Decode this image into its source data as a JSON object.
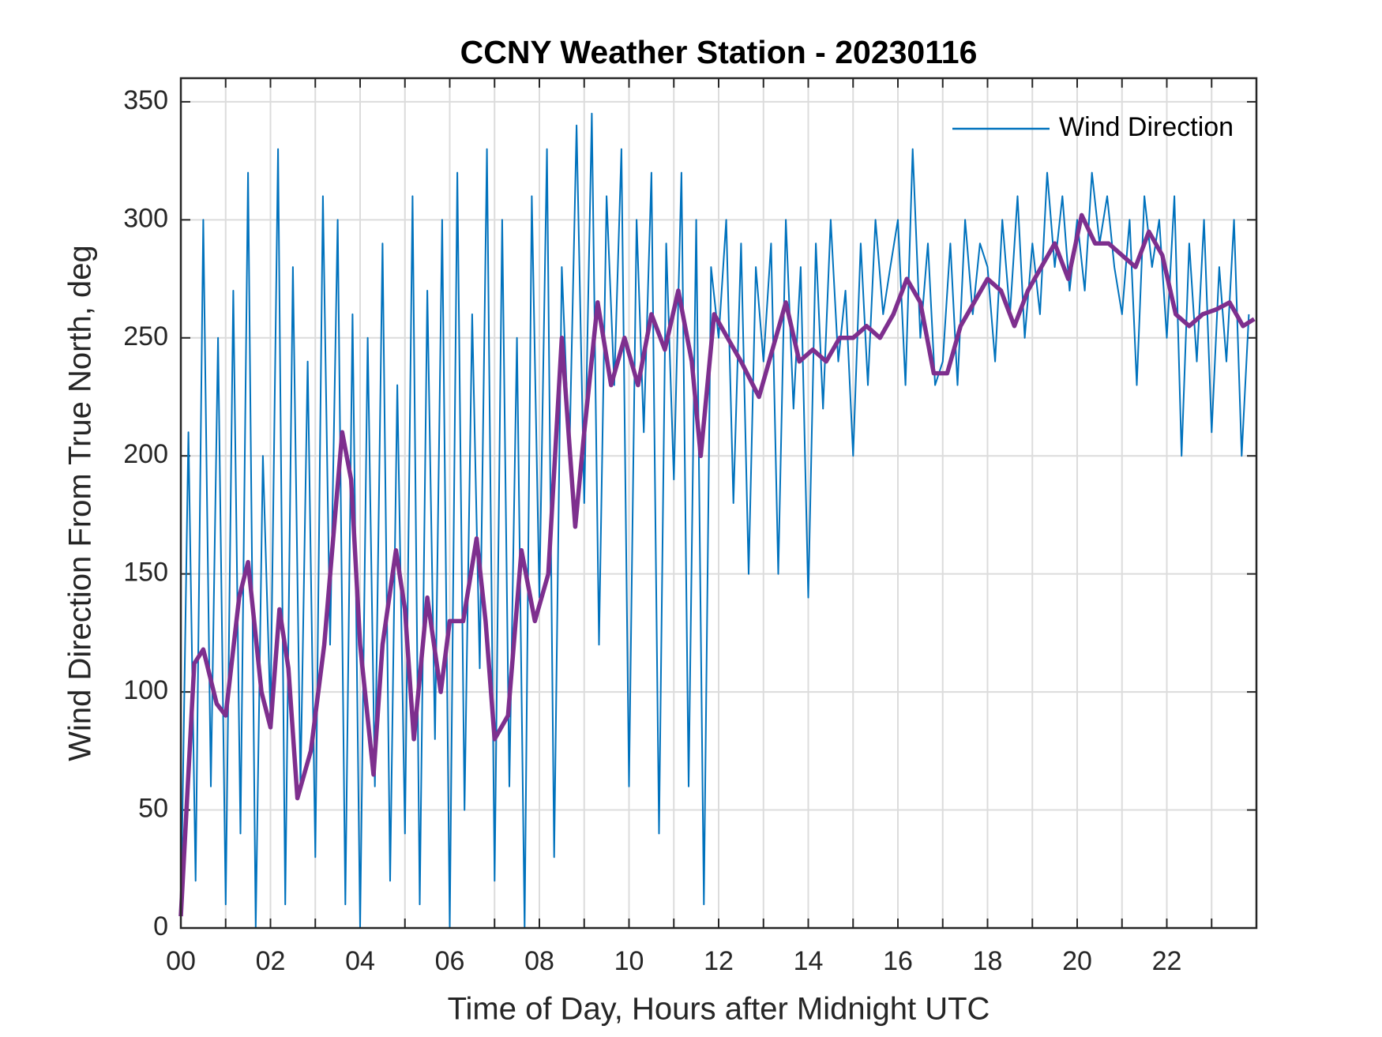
{
  "chart_data": {
    "type": "line",
    "title": "CCNY Weather Station - 20230116",
    "xlabel": "Time of Day, Hours after Midnight UTC",
    "ylabel": "Wind Direction From True North, deg",
    "xlim": [
      0,
      24
    ],
    "ylim": [
      0,
      360
    ],
    "xticks": [
      {
        "value": 0,
        "label": "00"
      },
      {
        "value": 2,
        "label": "02"
      },
      {
        "value": 4,
        "label": "04"
      },
      {
        "value": 6,
        "label": "06"
      },
      {
        "value": 8,
        "label": "08"
      },
      {
        "value": 10,
        "label": "10"
      },
      {
        "value": 12,
        "label": "12"
      },
      {
        "value": 14,
        "label": "14"
      },
      {
        "value": 16,
        "label": "16"
      },
      {
        "value": 18,
        "label": "18"
      },
      {
        "value": 20,
        "label": "20"
      },
      {
        "value": 22,
        "label": "22"
      }
    ],
    "xminorticks": [
      1,
      3,
      5,
      7,
      9,
      11,
      13,
      15,
      17,
      19,
      21,
      23
    ],
    "yticks": [
      0,
      50,
      100,
      150,
      200,
      250,
      300,
      350
    ],
    "grid": true,
    "legend": "upper right",
    "series": [
      {
        "name": "Wind Direction",
        "color": "#0072BD",
        "x": [
          0,
          0.17,
          0.33,
          0.5,
          0.67,
          0.83,
          1,
          1.17,
          1.33,
          1.5,
          1.67,
          1.83,
          2,
          2.17,
          2.33,
          2.5,
          2.67,
          2.83,
          3,
          3.17,
          3.33,
          3.5,
          3.67,
          3.83,
          4,
          4.17,
          4.33,
          4.5,
          4.67,
          4.83,
          5,
          5.17,
          5.33,
          5.5,
          5.67,
          5.83,
          6,
          6.17,
          6.33,
          6.5,
          6.67,
          6.83,
          7,
          7.17,
          7.33,
          7.5,
          7.67,
          7.83,
          8,
          8.17,
          8.33,
          8.5,
          8.67,
          8.83,
          9,
          9.17,
          9.33,
          9.5,
          9.67,
          9.83,
          10,
          10.17,
          10.33,
          10.5,
          10.67,
          10.83,
          11,
          11.17,
          11.33,
          11.5,
          11.67,
          11.83,
          12,
          12.17,
          12.33,
          12.5,
          12.67,
          12.83,
          13,
          13.17,
          13.33,
          13.5,
          13.67,
          13.83,
          14,
          14.17,
          14.33,
          14.5,
          14.67,
          14.83,
          15,
          15.17,
          15.33,
          15.5,
          15.67,
          15.83,
          16,
          16.17,
          16.33,
          16.5,
          16.67,
          16.83,
          17,
          17.17,
          17.33,
          17.5,
          17.67,
          17.83,
          18,
          18.17,
          18.33,
          18.5,
          18.67,
          18.83,
          19,
          19.17,
          19.33,
          19.5,
          19.67,
          19.83,
          20,
          20.17,
          20.33,
          20.5,
          20.67,
          20.83,
          21,
          21.17,
          21.33,
          21.5,
          21.67,
          21.83,
          22,
          22.17,
          22.33,
          22.5,
          22.67,
          22.83,
          23,
          23.17,
          23.33,
          23.5,
          23.67,
          23.83
        ],
        "values": [
          5,
          210,
          20,
          300,
          60,
          250,
          10,
          270,
          40,
          320,
          0,
          200,
          90,
          330,
          10,
          280,
          60,
          240,
          30,
          310,
          120,
          300,
          10,
          260,
          0,
          250,
          60,
          290,
          20,
          230,
          40,
          310,
          10,
          270,
          80,
          300,
          0,
          320,
          50,
          260,
          110,
          330,
          20,
          300,
          60,
          250,
          0,
          310,
          140,
          330,
          30,
          280,
          200,
          340,
          180,
          345,
          120,
          310,
          230,
          330,
          60,
          300,
          210,
          320,
          40,
          290,
          190,
          320,
          60,
          300,
          10,
          280,
          250,
          300,
          180,
          290,
          150,
          280,
          240,
          290,
          150,
          300,
          220,
          280,
          140,
          290,
          220,
          300,
          240,
          270,
          200,
          290,
          230,
          300,
          260,
          280,
          300,
          230,
          330,
          250,
          290,
          230,
          240,
          290,
          230,
          300,
          260,
          290,
          280,
          240,
          300,
          260,
          310,
          250,
          290,
          260,
          320,
          280,
          310,
          270,
          300,
          270,
          320,
          290,
          310,
          280,
          260,
          300,
          230,
          310,
          280,
          300,
          250,
          310,
          200,
          290,
          240,
          300,
          210,
          280,
          240,
          300,
          200,
          260
        ]
      },
      {
        "color": "#7E2F8E",
        "x": [
          0,
          0.3,
          0.5,
          0.8,
          1.0,
          1.3,
          1.5,
          1.8,
          2.0,
          2.2,
          2.4,
          2.6,
          2.9,
          3.2,
          3.4,
          3.6,
          3.8,
          4.0,
          4.3,
          4.5,
          4.8,
          5.0,
          5.2,
          5.5,
          5.8,
          6.0,
          6.3,
          6.6,
          6.8,
          7.0,
          7.3,
          7.6,
          7.9,
          8.2,
          8.5,
          8.8,
          9.0,
          9.3,
          9.6,
          9.9,
          10.2,
          10.5,
          10.8,
          11.1,
          11.4,
          11.6,
          11.9,
          12.2,
          12.5,
          12.9,
          13.2,
          13.5,
          13.8,
          14.1,
          14.4,
          14.7,
          15.0,
          15.3,
          15.6,
          15.9,
          16.2,
          16.5,
          16.8,
          17.1,
          17.4,
          17.7,
          18.0,
          18.3,
          18.6,
          18.9,
          19.2,
          19.5,
          19.8,
          20.1,
          20.4,
          20.7,
          21.0,
          21.3,
          21.6,
          21.9,
          22.2,
          22.5,
          22.8,
          23.1,
          23.4,
          23.7,
          23.95
        ],
        "values": [
          5,
          112,
          118,
          95,
          90,
          140,
          155,
          100,
          85,
          135,
          110,
          55,
          75,
          120,
          165,
          210,
          190,
          120,
          65,
          120,
          160,
          135,
          80,
          140,
          100,
          130,
          130,
          165,
          130,
          80,
          90,
          160,
          130,
          150,
          250,
          170,
          210,
          265,
          230,
          250,
          230,
          260,
          245,
          270,
          240,
          200,
          260,
          250,
          240,
          225,
          245,
          265,
          240,
          245,
          240,
          250,
          250,
          255,
          250,
          260,
          275,
          265,
          235,
          235,
          255,
          265,
          275,
          270,
          255,
          270,
          280,
          290,
          275,
          302,
          290,
          290,
          285,
          280,
          295,
          285,
          260,
          255,
          260,
          262,
          265,
          255,
          258
        ]
      }
    ]
  }
}
